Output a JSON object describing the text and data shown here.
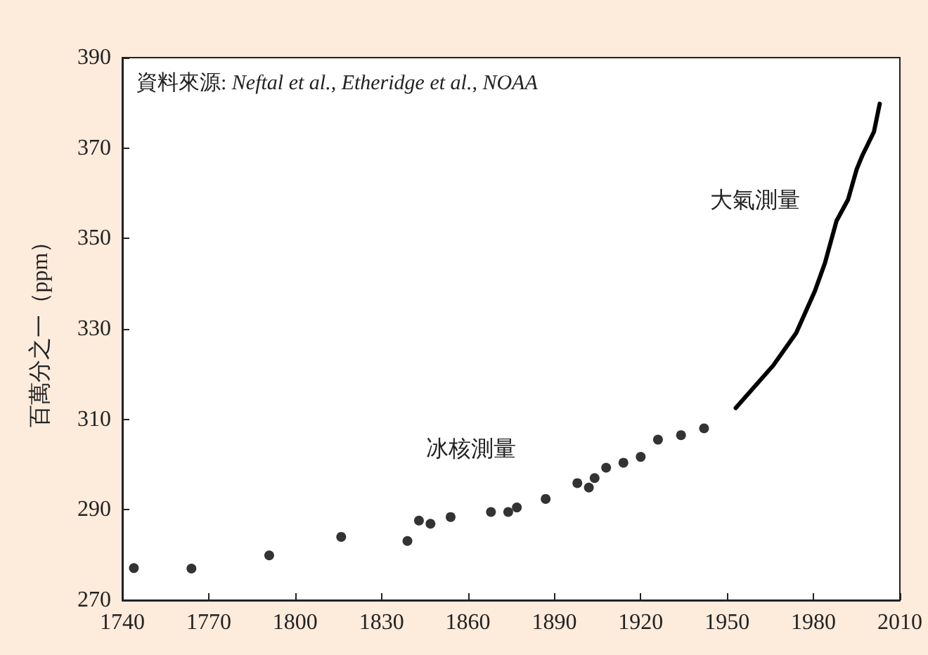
{
  "chart_data": {
    "type": "scatter",
    "ylabel": "百萬分之一（ppm）",
    "annotations": [
      "資料來源: Neftal et al., Etheridge et al., NOAA",
      "冰核測量",
      "大氣測量"
    ],
    "series": [
      {
        "color": "#000000",
        "marker": "circle",
        "x": [
          1744,
          1764,
          1791,
          1816,
          1839,
          1843,
          1847,
          1854,
          1868,
          1874,
          1877,
          1887,
          1898,
          1902,
          1904,
          1908,
          1914,
          1920,
          1926,
          1934,
          1942
        ],
        "values": [
          277.1,
          277.0,
          279.9,
          284.0,
          283.1,
          287.6,
          286.9,
          288.4,
          289.5,
          289.5,
          290.5,
          292.4,
          295.9,
          294.9,
          297.0,
          299.3,
          300.4,
          301.7,
          305.5,
          306.5,
          308.0
        ]
      },
      {
        "type": "line",
        "color": "#000000",
        "x": [
          1953,
          1966,
          1974,
          1980.5,
          1984,
          1988,
          1992,
          1995,
          1997,
          2001,
          2003
        ],
        "values": [
          312.5,
          321.9,
          329.1,
          338.4,
          344.6,
          353.9,
          358.6,
          365.3,
          368.4,
          373.6,
          379.8
        ]
      }
    ],
    "xlim": [
      1740,
      2010
    ],
    "xticks": [
      1740,
      1770,
      1800,
      1830,
      1860,
      1890,
      1920,
      1950,
      1980,
      2010
    ],
    "ylim": [
      270,
      390
    ],
    "yticks": [
      270,
      290,
      310,
      330,
      350,
      370,
      390
    ],
    "grid": false
  }
}
